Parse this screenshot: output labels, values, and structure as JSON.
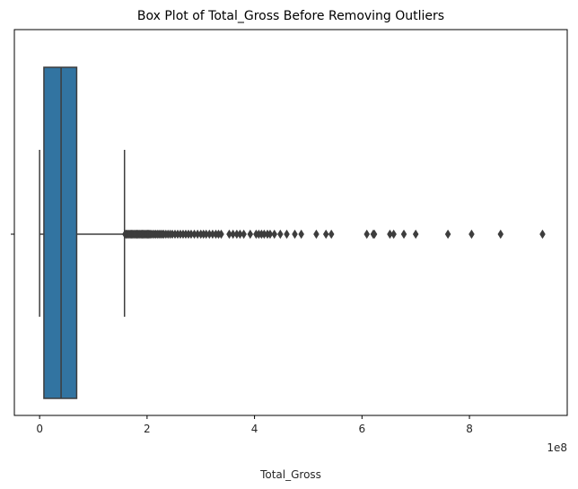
{
  "chart_data": {
    "type": "box",
    "title": "Box Plot of Total_Gross Before Removing Outliers",
    "xlabel": "Total_Gross",
    "ylabel": "",
    "x_offset_label": "1e8",
    "xlim": [
      -0.47,
      9.82
    ],
    "x_ticks": [
      0,
      2,
      4,
      6,
      8
    ],
    "x_tick_labels": [
      "0",
      "2",
      "4",
      "6",
      "8"
    ],
    "grid": false,
    "box": {
      "whisker_low": 0.0,
      "q1": 0.08,
      "median": 0.4,
      "q3": 0.69,
      "whisker_high": 1.58,
      "color": "#3274a1",
      "line_color": "#3d3d3d"
    },
    "outliers": [
      1.59,
      1.61,
      1.63,
      1.65,
      1.67,
      1.69,
      1.71,
      1.73,
      1.75,
      1.77,
      1.79,
      1.81,
      1.83,
      1.85,
      1.87,
      1.89,
      1.91,
      1.93,
      1.95,
      1.97,
      1.99,
      2.01,
      2.03,
      2.05,
      2.07,
      2.1,
      2.13,
      2.16,
      2.19,
      2.22,
      2.25,
      2.28,
      2.31,
      2.35,
      2.39,
      2.43,
      2.47,
      2.52,
      2.57,
      2.62,
      2.67,
      2.72,
      2.77,
      2.82,
      2.88,
      2.94,
      3.0,
      3.05,
      3.1,
      3.16,
      3.22,
      3.28,
      3.33,
      3.38,
      3.53,
      3.6,
      3.67,
      3.73,
      3.8,
      3.92,
      4.03,
      4.08,
      4.13,
      4.18,
      4.24,
      4.29,
      4.37,
      4.48,
      4.6,
      4.75,
      4.87,
      5.15,
      5.33,
      5.43,
      6.09,
      6.21,
      6.23,
      6.52,
      6.59,
      6.78,
      7.0,
      7.6,
      8.04,
      8.58,
      9.36
    ],
    "outlier_marker": "diamond"
  }
}
